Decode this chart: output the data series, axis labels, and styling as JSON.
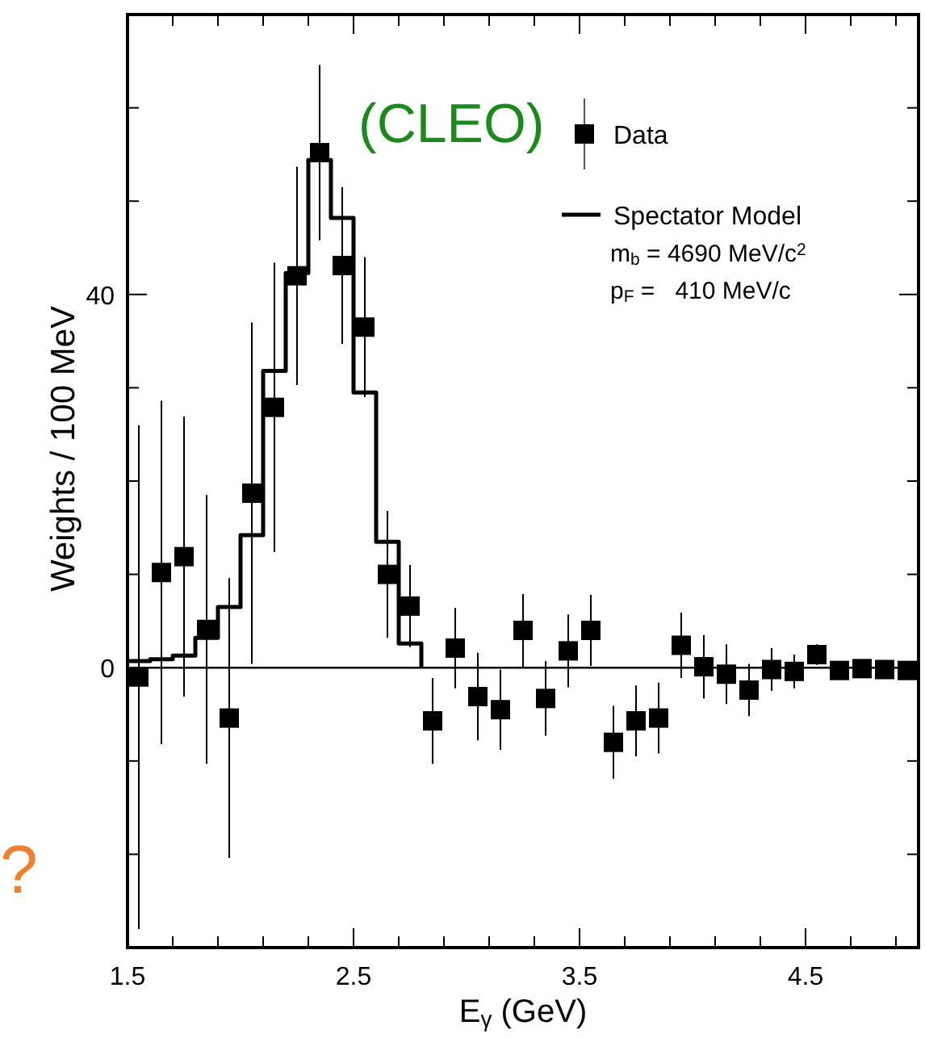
{
  "chart_data": {
    "type": "scatter",
    "xlabel": "E$_{γ}$ (GeV)",
    "ylabel": "Weights / 100 MeV",
    "xlim": [
      1.5,
      5.0
    ],
    "ylim": [
      -30,
      70
    ],
    "xticks": [
      1.5,
      {
        "value": 1.7,
        "label": null
      },
      {
        "value": 1.9,
        "label": null
      },
      {
        "value": 2.1,
        "label": null
      },
      {
        "value": 2.3,
        "label": null
      },
      2.5,
      {
        "value": 2.7,
        "label": null
      },
      {
        "value": 2.9,
        "label": null
      },
      {
        "value": 3.1,
        "label": null
      },
      {
        "value": 3.3,
        "label": null
      },
      3.5,
      {
        "value": 3.7,
        "label": null
      },
      {
        "value": 3.9,
        "label": null
      },
      {
        "value": 4.1,
        "label": null
      },
      {
        "value": 4.3,
        "label": null
      },
      4.5,
      {
        "value": 4.7,
        "label": null
      },
      {
        "value": 4.9,
        "label": null
      }
    ],
    "yticks": [
      {
        "value": -20,
        "label": null
      },
      {
        "value": -10,
        "label": null
      },
      0,
      {
        "value": 10,
        "label": null
      },
      {
        "value": 20,
        "label": null
      },
      {
        "value": 30,
        "label": null
      },
      40,
      {
        "value": 50,
        "label": null
      },
      {
        "value": 60,
        "label": null
      }
    ],
    "ref_lines": [
      {
        "axis": "y",
        "value": 0,
        "color": "#000000"
      }
    ],
    "legend": "top right",
    "series": [
      {
        "name": "Data",
        "marker": "square",
        "color": "#000000",
        "x": [
          1.55,
          1.65,
          1.75,
          1.85,
          1.95,
          2.05,
          2.15,
          2.25,
          2.35,
          2.45,
          2.55,
          2.65,
          2.75,
          2.85,
          2.95,
          3.05,
          3.15,
          3.25,
          3.35,
          3.45,
          3.55,
          3.65,
          3.75,
          3.85,
          3.95,
          4.05,
          4.15,
          4.25,
          4.35,
          4.45,
          4.55,
          4.65,
          4.75,
          4.85,
          4.95
        ],
        "values": [
          -1.0,
          10.2,
          11.9,
          4.1,
          -5.4,
          18.7,
          27.9,
          42.0,
          55.2,
          43.1,
          36.5,
          10.0,
          6.6,
          -5.7,
          2.1,
          -3.1,
          -4.5,
          4.0,
          -3.3,
          1.8,
          4.0,
          -8.0,
          -5.7,
          -5.4,
          2.4,
          0.1,
          -0.7,
          -2.4,
          -0.2,
          -0.4,
          1.4,
          -0.3,
          -0.1,
          -0.2,
          -0.3
        ],
        "errors": [
          27,
          18.4,
          15,
          14.4,
          15,
          18.3,
          15.5,
          11.7,
          9.4,
          8.4,
          7.5,
          6.8,
          4.4,
          4.6,
          4.3,
          4.7,
          4.3,
          3.9,
          4.0,
          3.9,
          3.8,
          3.9,
          3.8,
          3.8,
          3.5,
          3.4,
          3.2,
          2.8,
          2.3,
          1.8,
          1.1,
          0.5,
          0.3,
          0.3,
          0.3
        ]
      },
      {
        "name": "Spectator Model",
        "type": "step",
        "color": "#000000",
        "marker": "none",
        "x": [
          1.5,
          1.6,
          1.7,
          1.8,
          1.9,
          2.0,
          2.1,
          2.2,
          2.3,
          2.4,
          2.5,
          2.6,
          2.7,
          2.8
        ],
        "values": [
          0.7,
          0.9,
          1.3,
          3.2,
          6.5,
          14.2,
          31.8,
          42.3,
          54.4,
          48.2,
          29.5,
          13.5,
          2.6,
          0
        ]
      }
    ],
    "annotations": [
      "(CLEO)",
      "m$_{b}$ = 4690 MeV/c$^{2}$",
      "p$_{F}$ =   410 MeV/c",
      "?"
    ]
  }
}
